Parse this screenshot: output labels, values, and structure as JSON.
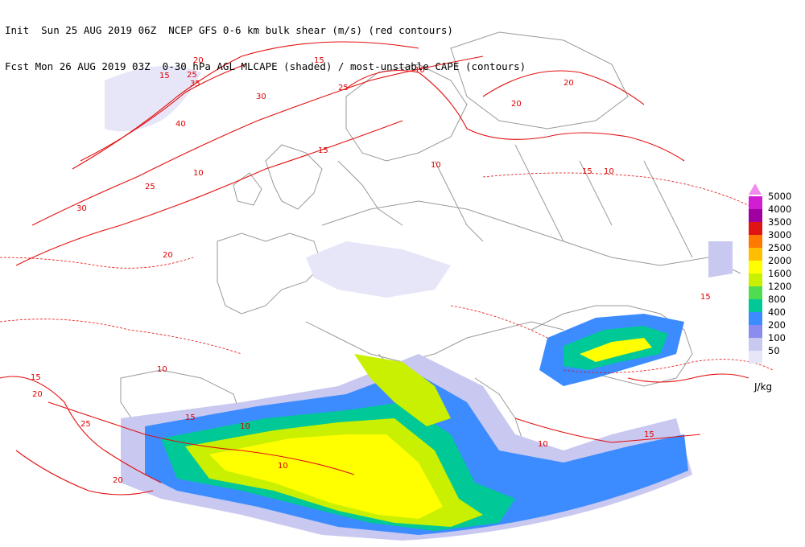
{
  "header": {
    "line1": "Init  Sun 25 AUG 2019 06Z  NCEP GFS 0-6 km bulk shear (m/s) (red contours)",
    "line2": "Fcst Mon 26 AUG 2019 03Z  0-30 hPa AGL MLCAPE (shaded) / most-unstable CAPE (contours)"
  },
  "legend": {
    "units": "J/kg",
    "entries": [
      {
        "label": "5000",
        "color": "#f08cf0"
      },
      {
        "label": "4000",
        "color": "#d21ed2"
      },
      {
        "label": "3500",
        "color": "#a000a0"
      },
      {
        "label": "3000",
        "color": "#e11414"
      },
      {
        "label": "2500",
        "color": "#ff7800"
      },
      {
        "label": "2000",
        "color": "#ffbe00"
      },
      {
        "label": "1600",
        "color": "#ffff00"
      },
      {
        "label": "1200",
        "color": "#c8f000"
      },
      {
        "label": "800",
        "color": "#50dc50"
      },
      {
        "label": "400",
        "color": "#00c896"
      },
      {
        "label": "200",
        "color": "#3c8cff"
      },
      {
        "label": "100",
        "color": "#8c8cf0"
      },
      {
        "label": "50",
        "color": "#c8c8f0"
      },
      {
        "label": "",
        "color": "#e6e6f8"
      }
    ]
  },
  "shear_labels": [
    "15",
    "20",
    "25",
    "30",
    "35",
    "40",
    "10",
    "25",
    "30",
    "15",
    "20",
    "10",
    "25",
    "20",
    "15",
    "10",
    "15",
    "20",
    "10",
    "15",
    "10",
    "20",
    "15",
    "25",
    "20",
    "10",
    "10",
    "15",
    "10",
    "15"
  ]
}
